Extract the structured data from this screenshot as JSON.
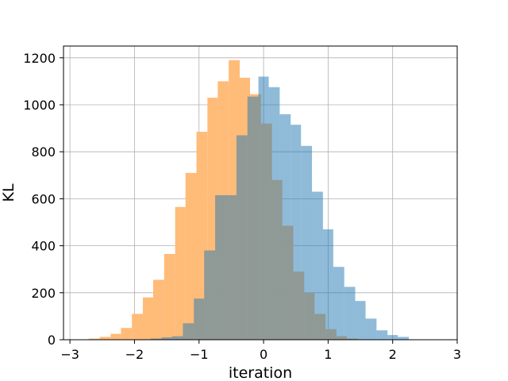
{
  "chart_data": {
    "type": "bar",
    "subtype": "overlapping-histogram",
    "title": "",
    "xlabel": "iteration",
    "ylabel": "KL",
    "xlim": [
      -3.1,
      3.0
    ],
    "ylim": [
      0,
      1250
    ],
    "grid": true,
    "legend": "none",
    "xticks": [
      -3,
      -2,
      -1,
      0,
      1,
      2,
      3
    ],
    "yticks": [
      0,
      200,
      400,
      600,
      800,
      1000,
      1200
    ],
    "series": [
      {
        "color": "#ffbb78",
        "opacity": 1.0,
        "bins": [
          {
            "x0": -2.71,
            "x1": -2.54,
            "count": 5
          },
          {
            "x0": -2.54,
            "x1": -2.37,
            "count": 12
          },
          {
            "x0": -2.37,
            "x1": -2.21,
            "count": 25
          },
          {
            "x0": -2.21,
            "x1": -2.04,
            "count": 50
          },
          {
            "x0": -2.04,
            "x1": -1.87,
            "count": 110
          },
          {
            "x0": -1.87,
            "x1": -1.71,
            "count": 180
          },
          {
            "x0": -1.71,
            "x1": -1.54,
            "count": 255
          },
          {
            "x0": -1.54,
            "x1": -1.37,
            "count": 365
          },
          {
            "x0": -1.37,
            "x1": -1.21,
            "count": 565
          },
          {
            "x0": -1.21,
            "x1": -1.04,
            "count": 710
          },
          {
            "x0": -1.04,
            "x1": -0.87,
            "count": 885
          },
          {
            "x0": -0.87,
            "x1": -0.71,
            "count": 1030
          },
          {
            "x0": -0.71,
            "x1": -0.54,
            "count": 1100
          },
          {
            "x0": -0.54,
            "x1": -0.37,
            "count": 1190
          },
          {
            "x0": -0.37,
            "x1": -0.21,
            "count": 1115
          },
          {
            "x0": -0.21,
            "x1": -0.04,
            "count": 1045
          },
          {
            "x0": -0.04,
            "x1": 0.13,
            "count": 920
          },
          {
            "x0": 0.13,
            "x1": 0.29,
            "count": 680
          },
          {
            "x0": 0.29,
            "x1": 0.46,
            "count": 485
          },
          {
            "x0": 0.46,
            "x1": 0.63,
            "count": 290
          },
          {
            "x0": 0.63,
            "x1": 0.79,
            "count": 200
          },
          {
            "x0": 0.79,
            "x1": 0.96,
            "count": 110
          },
          {
            "x0": 0.96,
            "x1": 1.13,
            "count": 45
          },
          {
            "x0": 1.13,
            "x1": 1.29,
            "count": 15
          },
          {
            "x0": 1.29,
            "x1": 1.46,
            "count": 5
          }
        ]
      },
      {
        "color": "#1f77b4",
        "opacity": 0.5,
        "bins": [
          {
            "x0": -1.92,
            "x1": -1.75,
            "count": 2
          },
          {
            "x0": -1.75,
            "x1": -1.58,
            "count": 5
          },
          {
            "x0": -1.58,
            "x1": -1.42,
            "count": 10
          },
          {
            "x0": -1.42,
            "x1": -1.25,
            "count": 15
          },
          {
            "x0": -1.25,
            "x1": -1.08,
            "count": 70
          },
          {
            "x0": -1.08,
            "x1": -0.92,
            "count": 175
          },
          {
            "x0": -0.92,
            "x1": -0.75,
            "count": 380
          },
          {
            "x0": -0.75,
            "x1": -0.58,
            "count": 615
          },
          {
            "x0": -0.58,
            "x1": -0.42,
            "count": 615
          },
          {
            "x0": -0.42,
            "x1": -0.25,
            "count": 870
          },
          {
            "x0": -0.25,
            "x1": -0.08,
            "count": 1035
          },
          {
            "x0": -0.08,
            "x1": 0.08,
            "count": 1120
          },
          {
            "x0": 0.08,
            "x1": 0.25,
            "count": 1075
          },
          {
            "x0": 0.25,
            "x1": 0.42,
            "count": 960
          },
          {
            "x0": 0.42,
            "x1": 0.58,
            "count": 915
          },
          {
            "x0": 0.58,
            "x1": 0.75,
            "count": 825
          },
          {
            "x0": 0.75,
            "x1": 0.92,
            "count": 630
          },
          {
            "x0": 0.92,
            "x1": 1.08,
            "count": 470
          },
          {
            "x0": 1.08,
            "x1": 1.25,
            "count": 310
          },
          {
            "x0": 1.25,
            "x1": 1.42,
            "count": 225
          },
          {
            "x0": 1.42,
            "x1": 1.58,
            "count": 165
          },
          {
            "x0": 1.58,
            "x1": 1.75,
            "count": 90
          },
          {
            "x0": 1.75,
            "x1": 1.92,
            "count": 40
          },
          {
            "x0": 1.92,
            "x1": 2.08,
            "count": 20
          },
          {
            "x0": 2.08,
            "x1": 2.25,
            "count": 12
          }
        ]
      }
    ]
  }
}
